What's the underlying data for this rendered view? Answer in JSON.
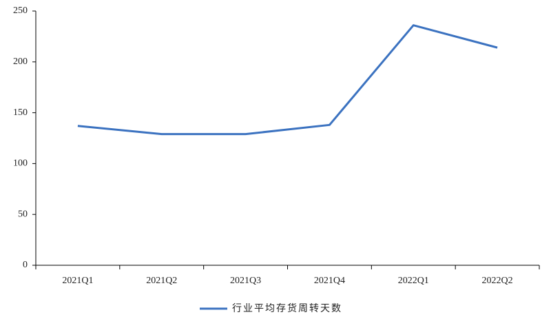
{
  "chart_data": {
    "type": "line",
    "categories": [
      "2021Q1",
      "2021Q2",
      "2021Q3",
      "2021Q4",
      "2022Q1",
      "2022Q2"
    ],
    "series": [
      {
        "name": "行业平均存货周转天数",
        "color": "#3b72c0",
        "values": [
          137,
          129,
          129,
          138,
          236,
          214
        ]
      }
    ],
    "ylim": [
      0,
      250
    ],
    "yticks": [
      0,
      50,
      100,
      150,
      200,
      250
    ],
    "grid": false,
    "legend": "bottom"
  }
}
